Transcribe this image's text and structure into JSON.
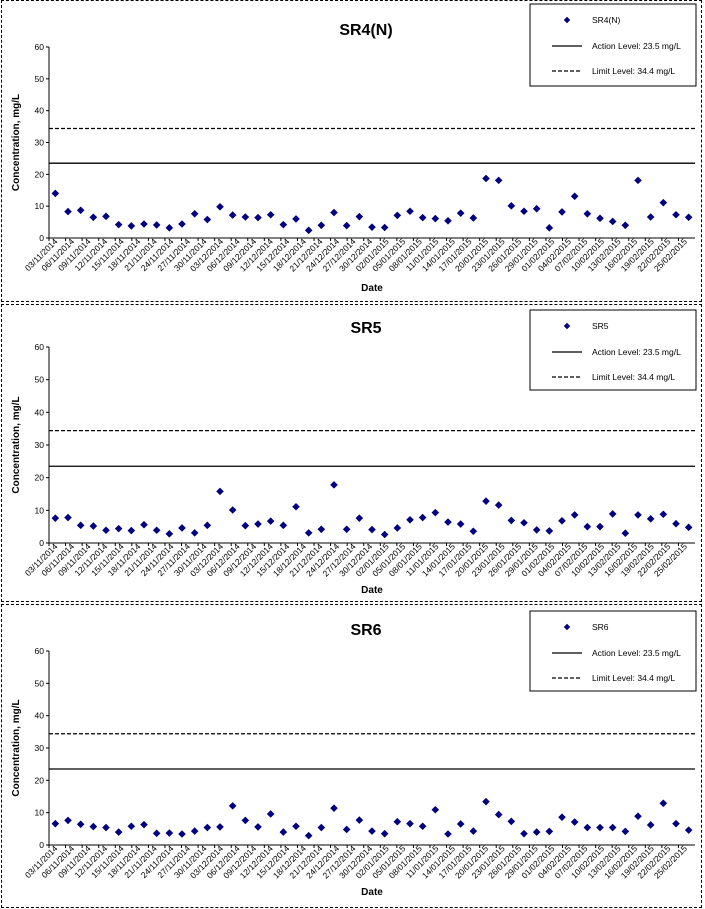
{
  "chart_data": [
    {
      "type": "scatter",
      "title": "SR4(N)",
      "xlabel": "Date",
      "ylabel": "Concentration, mg/L",
      "ylim": [
        0,
        60
      ],
      "yticks": [
        0,
        10,
        20,
        30,
        40,
        50,
        60
      ],
      "x_tick_labels": [
        "03/11/2014",
        "06/11/2014",
        "09/11/2014",
        "12/11/2014",
        "15/11/2014",
        "18/11/2014",
        "21/11/2014",
        "24/11/2014",
        "27/11/2014",
        "30/11/2014",
        "03/12/2014",
        "06/12/2014",
        "09/12/2014",
        "12/12/2014",
        "15/12/2014",
        "18/12/2014",
        "21/12/2014",
        "24/12/2014",
        "27/12/2014",
        "30/12/2014",
        "02/01/2015",
        "05/01/2015",
        "08/01/2015",
        "11/01/2015",
        "14/01/2015",
        "17/01/2015",
        "20/01/2015",
        "23/01/2015",
        "26/01/2015",
        "29/01/2015",
        "01/02/2015",
        "04/02/2015",
        "07/02/2015",
        "10/02/2015",
        "13/02/2015",
        "16/02/2015",
        "19/02/2015",
        "22/02/2015",
        "25/02/2015"
      ],
      "series": [
        {
          "name": "SR4(N)",
          "marker": "diamond",
          "color": "#000080",
          "values": [
            14.0,
            8.3,
            8.7,
            6.5,
            6.8,
            4.2,
            3.8,
            4.4,
            4.1,
            3.2,
            4.4,
            7.6,
            5.8,
            9.8,
            7.2,
            6.6,
            6.4,
            7.3,
            4.2,
            6.0,
            2.4,
            4.0,
            8.0,
            3.9,
            6.7,
            3.4,
            3.3,
            7.1,
            8.4,
            6.4,
            6.1,
            5.4,
            7.8,
            6.3,
            18.7,
            18.1,
            10.1,
            8.4,
            9.2,
            3.2,
            8.2,
            13.1,
            7.6,
            6.2,
            5.2,
            4.0,
            18.1,
            6.6,
            11.1,
            7.3,
            6.5
          ]
        }
      ],
      "lines": [
        {
          "name": "Action Level: 23.5 mg/L",
          "value": 23.5,
          "style": "solid"
        },
        {
          "name": "Limit Level: 34.4 mg/L",
          "value": 34.4,
          "style": "dashed"
        }
      ],
      "legend_placement": "top-right"
    },
    {
      "type": "scatter",
      "title": "SR5",
      "xlabel": "Date",
      "ylabel": "Concentration, mg/L",
      "ylim": [
        0,
        60
      ],
      "yticks": [
        0,
        10,
        20,
        30,
        40,
        50,
        60
      ],
      "x_tick_labels": [
        "03/11/2014",
        "06/11/2014",
        "09/11/2014",
        "12/11/2014",
        "15/11/2014",
        "18/11/2014",
        "21/11/2014",
        "24/11/2014",
        "27/11/2014",
        "30/11/2014",
        "03/12/2014",
        "06/12/2014",
        "09/12/2014",
        "12/12/2014",
        "15/12/2014",
        "18/12/2014",
        "21/12/2014",
        "24/12/2014",
        "27/12/2014",
        "30/12/2014",
        "02/01/2015",
        "05/01/2015",
        "08/01/2015",
        "11/01/2015",
        "14/01/2015",
        "17/01/2015",
        "20/01/2015",
        "23/01/2015",
        "26/01/2015",
        "29/01/2015",
        "01/02/2015",
        "04/02/2015",
        "07/02/2015",
        "10/02/2015",
        "13/02/2015",
        "16/02/2015",
        "19/02/2015",
        "22/02/2015",
        "25/02/2015"
      ],
      "series": [
        {
          "name": "SR5",
          "marker": "diamond",
          "color": "#000080",
          "values": [
            7.6,
            7.8,
            5.4,
            5.2,
            3.9,
            4.4,
            3.8,
            5.6,
            3.9,
            2.8,
            4.6,
            3.1,
            5.4,
            15.8,
            10.1,
            5.3,
            5.8,
            6.7,
            5.4,
            11.1,
            3.1,
            4.2,
            17.8,
            4.2,
            7.6,
            4.1,
            2.6,
            4.6,
            7.1,
            7.8,
            9.3,
            6.4,
            5.8,
            3.6,
            12.8,
            11.6,
            6.9,
            6.2,
            4.0,
            3.7,
            6.8,
            8.6,
            5.0,
            5.0,
            8.9,
            3.0,
            8.6,
            7.4,
            8.8,
            5.9,
            4.8
          ]
        }
      ],
      "lines": [
        {
          "name": "Action Level: 23.5 mg/L",
          "value": 23.5,
          "style": "solid"
        },
        {
          "name": "Limit Level: 34.4 mg/L",
          "value": 34.4,
          "style": "dashed"
        }
      ],
      "legend_placement": "top-right"
    },
    {
      "type": "scatter",
      "title": "SR6",
      "xlabel": "Date",
      "ylabel": "Concentration, mg/L",
      "ylim": [
        0,
        60
      ],
      "yticks": [
        0,
        10,
        20,
        30,
        40,
        50,
        60
      ],
      "x_tick_labels": [
        "03/11/2014",
        "06/11/2014",
        "09/11/2014",
        "12/11/2014",
        "15/11/2014",
        "18/11/2014",
        "21/11/2014",
        "24/11/2014",
        "27/11/2014",
        "30/11/2014",
        "03/12/2014",
        "06/12/2014",
        "09/12/2014",
        "12/12/2014",
        "15/12/2014",
        "18/12/2014",
        "21/12/2014",
        "24/12/2014",
        "27/12/2014",
        "30/12/2014",
        "02/01/2015",
        "05/01/2015",
        "08/01/2015",
        "11/01/2015",
        "14/01/2015",
        "17/01/2015",
        "20/01/2015",
        "23/01/2015",
        "26/01/2015",
        "29/01/2015",
        "01/02/2015",
        "04/02/2015",
        "07/02/2015",
        "10/02/2015",
        "13/02/2015",
        "16/02/2015",
        "19/02/2015",
        "22/02/2015",
        "25/02/2015"
      ],
      "series": [
        {
          "name": "SR6",
          "marker": "diamond",
          "color": "#000080",
          "values": [
            6.6,
            7.6,
            6.4,
            5.7,
            5.4,
            4.0,
            5.8,
            6.3,
            3.6,
            3.7,
            3.4,
            4.3,
            5.4,
            5.6,
            12.1,
            7.6,
            5.6,
            9.6,
            4.0,
            5.8,
            2.9,
            5.4,
            11.4,
            4.8,
            7.7,
            4.3,
            3.5,
            7.2,
            6.6,
            5.8,
            10.9,
            3.4,
            6.5,
            4.3,
            13.4,
            9.4,
            7.3,
            3.5,
            4.0,
            4.2,
            8.6,
            7.1,
            5.4,
            5.4,
            5.4,
            4.2,
            8.9,
            6.2,
            12.9,
            6.6,
            4.6
          ]
        }
      ],
      "lines": [
        {
          "name": "Action Level: 23.5 mg/L",
          "value": 23.5,
          "style": "solid"
        },
        {
          "name": "Limit Level: 34.4 mg/L",
          "value": 34.4,
          "style": "dashed"
        }
      ],
      "legend_placement": "top-right"
    }
  ]
}
